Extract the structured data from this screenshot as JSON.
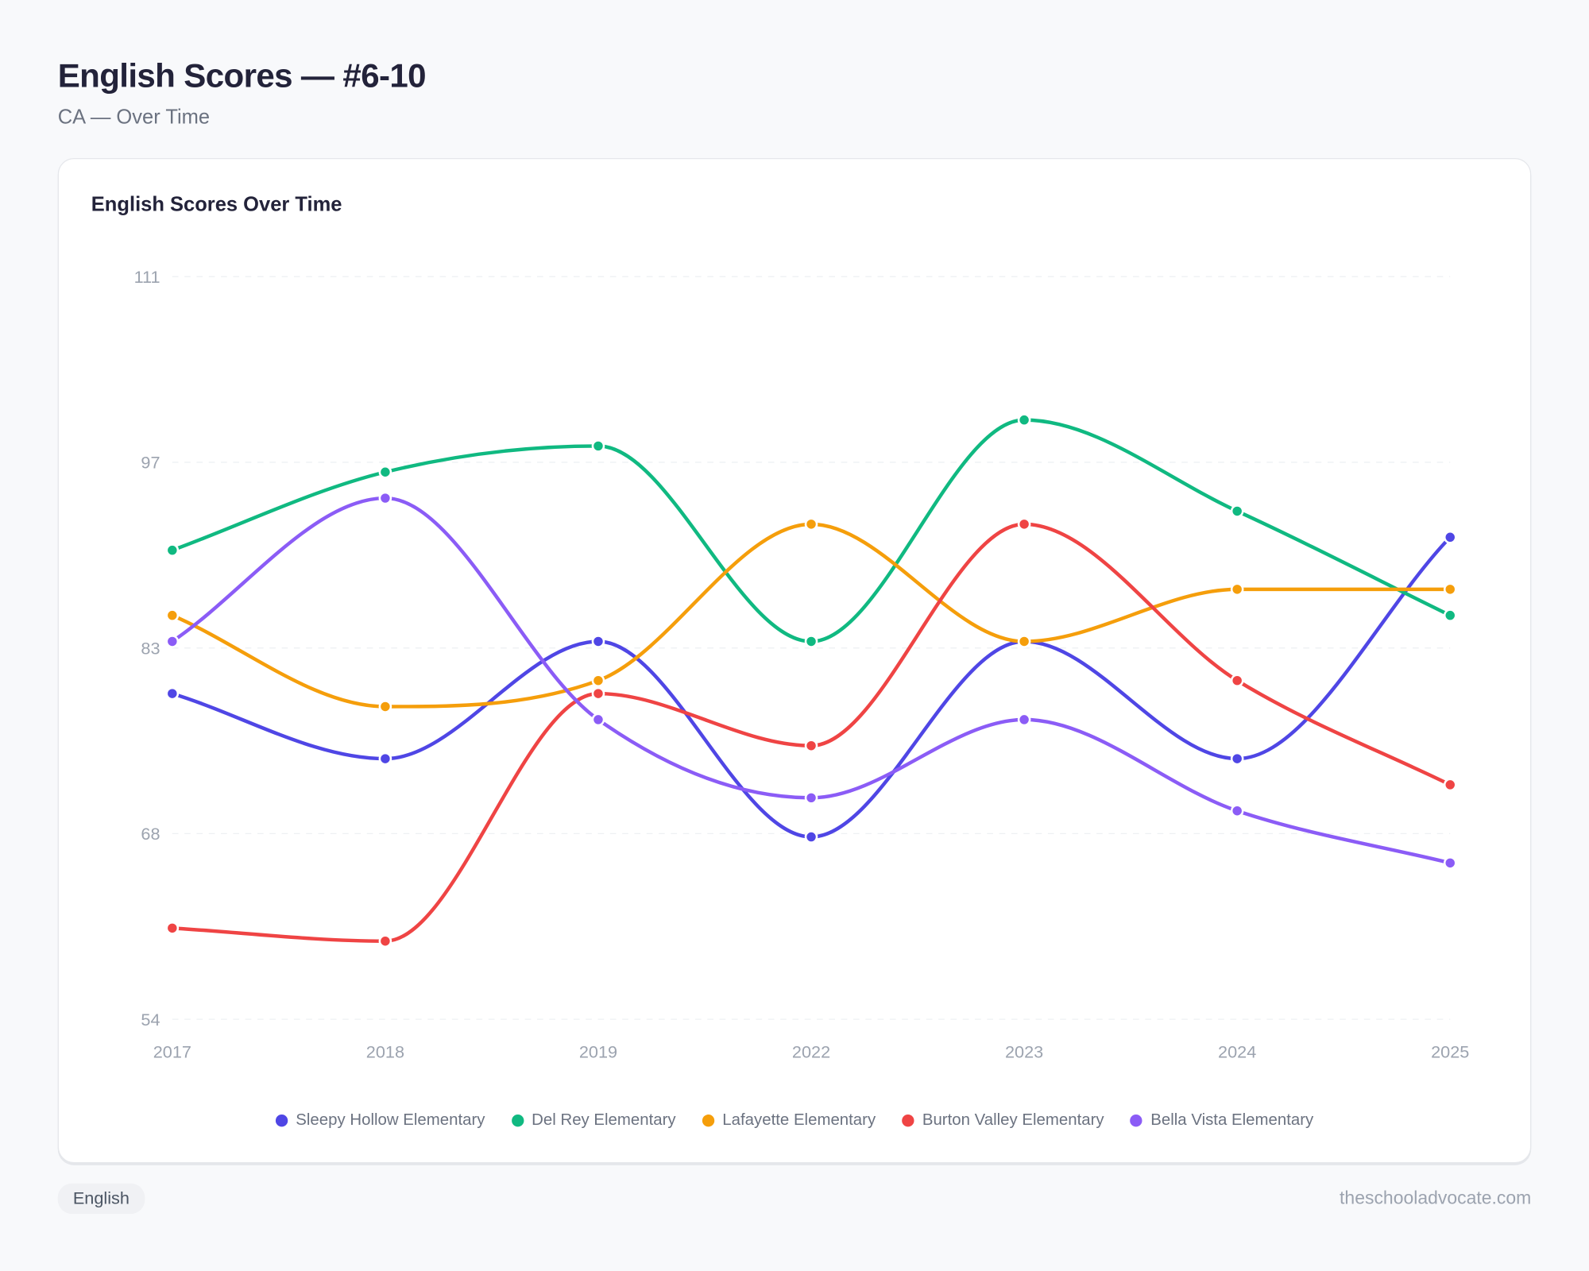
{
  "header": {
    "title": "English Scores — #6-10",
    "subtitle": "CA — Over Time"
  },
  "footer": {
    "tag": "English",
    "site": "theschooladvocate.com"
  },
  "chart_data": {
    "type": "line",
    "title": "English Scores Over Time",
    "x": [
      "2017",
      "2018",
      "2019",
      "2022",
      "2023",
      "2024",
      "2025"
    ],
    "yticks": [
      111,
      97,
      83,
      68,
      54
    ],
    "ylim": [
      54,
      111
    ],
    "grid": true,
    "legend": "bottom",
    "series": [
      {
        "name": "Sleepy Hollow Elementary",
        "color": "#4f46e5",
        "values": [
          79,
          74,
          83,
          68,
          83,
          74,
          91
        ]
      },
      {
        "name": "Del Rey Elementary",
        "color": "#10b981",
        "values": [
          90,
          96,
          98,
          83,
          100,
          93,
          85
        ]
      },
      {
        "name": "Lafayette Elementary",
        "color": "#f59e0b",
        "values": [
          85,
          78,
          80,
          92,
          83,
          87,
          87
        ]
      },
      {
        "name": "Burton Valley Elementary",
        "color": "#ef4444",
        "values": [
          61,
          60,
          79,
          75,
          92,
          80,
          72
        ]
      },
      {
        "name": "Bella Vista Elementary",
        "color": "#8b5cf6",
        "values": [
          83,
          94,
          77,
          71,
          77,
          70,
          66
        ]
      }
    ]
  }
}
